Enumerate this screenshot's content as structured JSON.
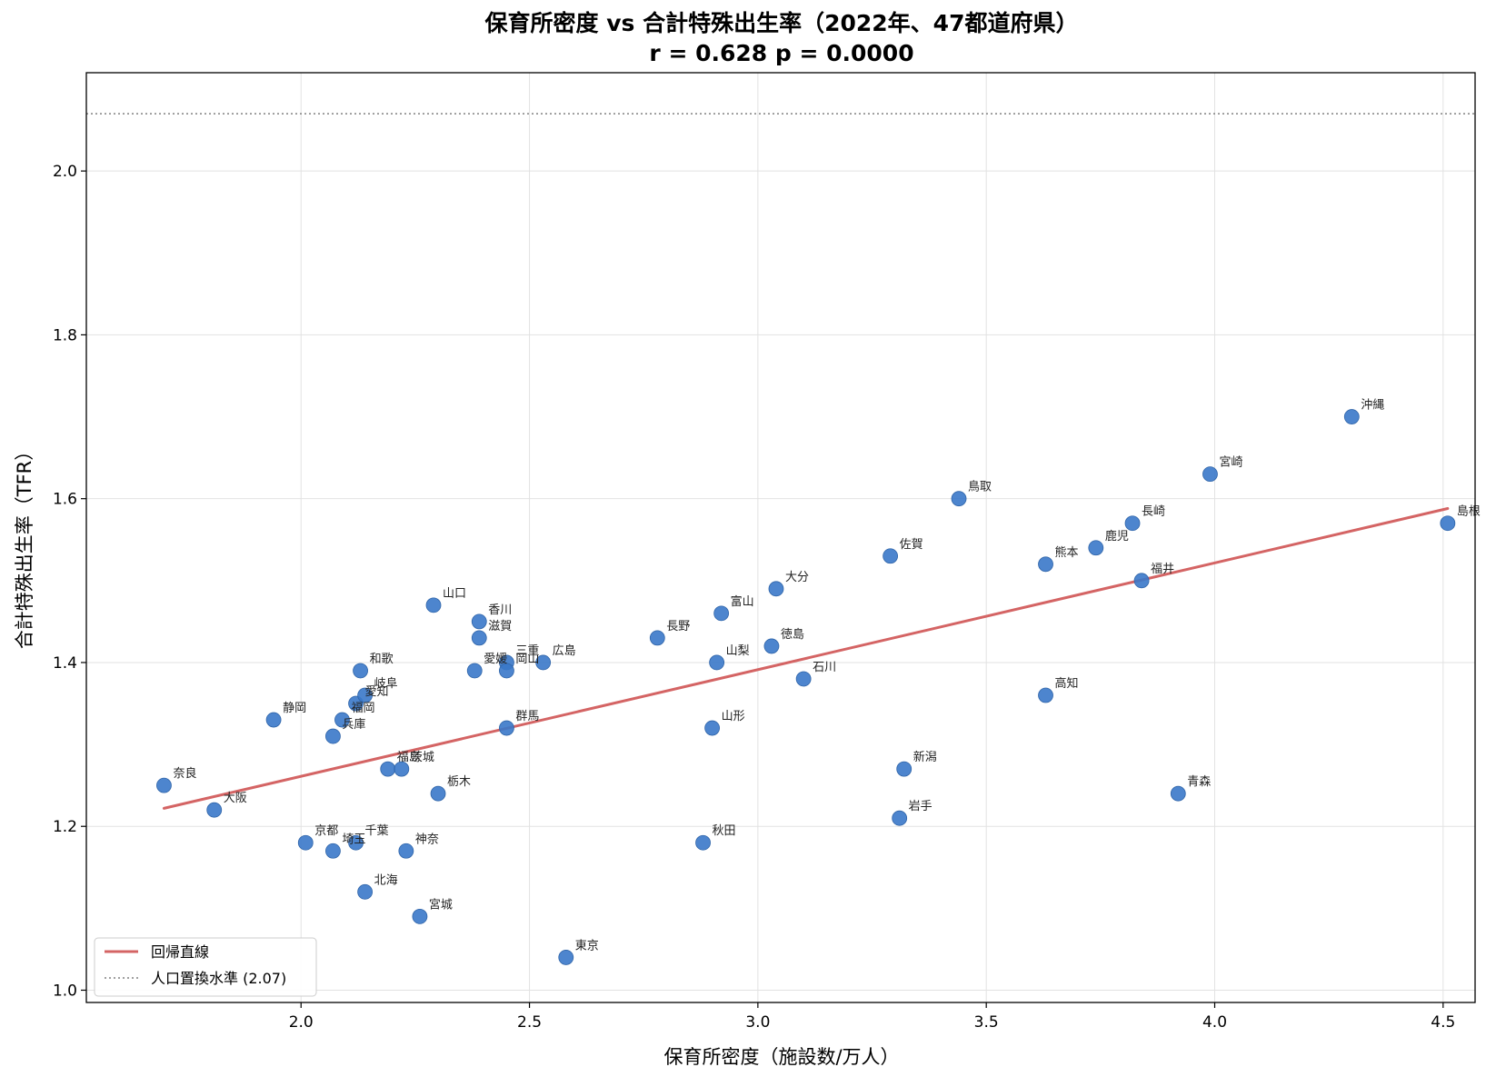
{
  "chart_data": {
    "type": "scatter",
    "title": "保育所密度 vs 合計特殊出生率（2022年、47都道府県）",
    "subtitle": "r = 0.628  p = 0.0000",
    "xlabel": "保育所密度（施設数/万人）",
    "ylabel": "合計特殊出生率（TFR）",
    "xlim": [
      1.53,
      4.57
    ],
    "ylim": [
      0.985,
      2.12
    ],
    "xticks": [
      2.0,
      2.5,
      3.0,
      3.5,
      4.0,
      4.5
    ],
    "xtick_labels": [
      "2.0",
      "2.5",
      "3.0",
      "3.5",
      "4.0",
      "4.5"
    ],
    "yticks": [
      1.0,
      1.2,
      1.4,
      1.6,
      1.8,
      2.0
    ],
    "ytick_labels": [
      "1.0",
      "1.2",
      "1.4",
      "1.6",
      "1.8",
      "2.0"
    ],
    "grid": true,
    "point_color": "#3a78c9",
    "regression": {
      "label": "回帰直線",
      "color": "#d46464",
      "x": [
        1.7,
        4.51
      ],
      "y": [
        1.222,
        1.588
      ]
    },
    "reference_line": {
      "label": "人口置換水準 (2.07)",
      "y": 2.07,
      "color": "#808080"
    },
    "legend_position": "lower left",
    "points": [
      {
        "label": "奈良",
        "x": 1.7,
        "y": 1.25
      },
      {
        "label": "大阪",
        "x": 1.81,
        "y": 1.22
      },
      {
        "label": "静岡",
        "x": 1.94,
        "y": 1.33
      },
      {
        "label": "京都",
        "x": 2.01,
        "y": 1.18
      },
      {
        "label": "兵庫",
        "x": 2.07,
        "y": 1.31
      },
      {
        "label": "埼玉",
        "x": 2.07,
        "y": 1.17
      },
      {
        "label": "福岡",
        "x": 2.09,
        "y": 1.33
      },
      {
        "label": "愛知",
        "x": 2.12,
        "y": 1.35
      },
      {
        "label": "千葉",
        "x": 2.12,
        "y": 1.18
      },
      {
        "label": "岐阜",
        "x": 2.14,
        "y": 1.36
      },
      {
        "label": "和歌",
        "x": 2.13,
        "y": 1.39
      },
      {
        "label": "北海",
        "x": 2.14,
        "y": 1.12
      },
      {
        "label": "福島",
        "x": 2.19,
        "y": 1.27
      },
      {
        "label": "茨城",
        "x": 2.22,
        "y": 1.27
      },
      {
        "label": "神奈",
        "x": 2.23,
        "y": 1.17
      },
      {
        "label": "宮城",
        "x": 2.26,
        "y": 1.09
      },
      {
        "label": "山口",
        "x": 2.29,
        "y": 1.47
      },
      {
        "label": "栃木",
        "x": 2.3,
        "y": 1.24
      },
      {
        "label": "愛媛",
        "x": 2.38,
        "y": 1.39
      },
      {
        "label": "香川",
        "x": 2.39,
        "y": 1.45
      },
      {
        "label": "滋賀",
        "x": 2.39,
        "y": 1.43
      },
      {
        "label": "群馬",
        "x": 2.45,
        "y": 1.32
      },
      {
        "label": "三重",
        "x": 2.45,
        "y": 1.4
      },
      {
        "label": "岡山",
        "x": 2.45,
        "y": 1.39
      },
      {
        "label": "広島",
        "x": 2.53,
        "y": 1.4
      },
      {
        "label": "東京",
        "x": 2.58,
        "y": 1.04
      },
      {
        "label": "長野",
        "x": 2.78,
        "y": 1.43
      },
      {
        "label": "秋田",
        "x": 2.88,
        "y": 1.18
      },
      {
        "label": "山形",
        "x": 2.9,
        "y": 1.32
      },
      {
        "label": "山梨",
        "x": 2.91,
        "y": 1.4
      },
      {
        "label": "富山",
        "x": 2.92,
        "y": 1.46
      },
      {
        "label": "徳島",
        "x": 3.03,
        "y": 1.42
      },
      {
        "label": "大分",
        "x": 3.04,
        "y": 1.49
      },
      {
        "label": "石川",
        "x": 3.1,
        "y": 1.38
      },
      {
        "label": "佐賀",
        "x": 3.29,
        "y": 1.53
      },
      {
        "label": "岩手",
        "x": 3.31,
        "y": 1.21
      },
      {
        "label": "新潟",
        "x": 3.32,
        "y": 1.27
      },
      {
        "label": "鳥取",
        "x": 3.44,
        "y": 1.6
      },
      {
        "label": "熊本",
        "x": 3.63,
        "y": 1.52
      },
      {
        "label": "高知",
        "x": 3.63,
        "y": 1.36
      },
      {
        "label": "鹿児",
        "x": 3.74,
        "y": 1.54
      },
      {
        "label": "長崎",
        "x": 3.82,
        "y": 1.57
      },
      {
        "label": "福井",
        "x": 3.84,
        "y": 1.5
      },
      {
        "label": "青森",
        "x": 3.92,
        "y": 1.24
      },
      {
        "label": "宮崎",
        "x": 3.99,
        "y": 1.63
      },
      {
        "label": "沖縄",
        "x": 4.3,
        "y": 1.7
      },
      {
        "label": "島根",
        "x": 4.51,
        "y": 1.57
      }
    ]
  }
}
